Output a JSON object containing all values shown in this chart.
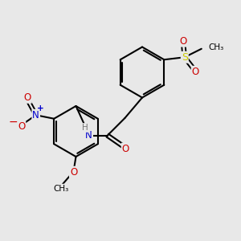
{
  "background_color": "#e8e8e8",
  "bond_color": "#000000",
  "atom_colors": {
    "N": "#0000cc",
    "O": "#cc0000",
    "S": "#cccc00",
    "H": "#777777",
    "C": "#000000"
  },
  "figsize": [
    3.0,
    3.0
  ],
  "dpi": 100,
  "xlim": [
    0,
    10
  ],
  "ylim": [
    0,
    10
  ]
}
